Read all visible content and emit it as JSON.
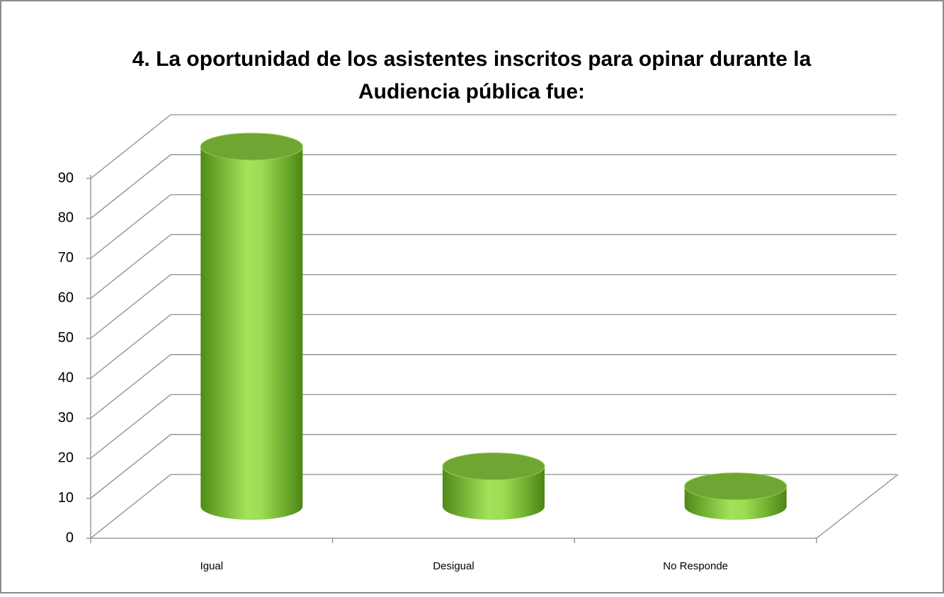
{
  "chart_data": {
    "type": "bar",
    "title": "4. La oportunidad de los asistentes inscritos para opinar durante la",
    "subtitle": "Audiencia pública fue:",
    "categories": [
      "Igual",
      "Desigual",
      "No Responde"
    ],
    "values": [
      90,
      10,
      5
    ],
    "color": "#8fcc48",
    "ylim": [
      0,
      90
    ],
    "yticks": [
      0,
      10,
      20,
      30,
      40,
      50,
      60,
      70,
      80,
      90
    ],
    "grid": true
  }
}
